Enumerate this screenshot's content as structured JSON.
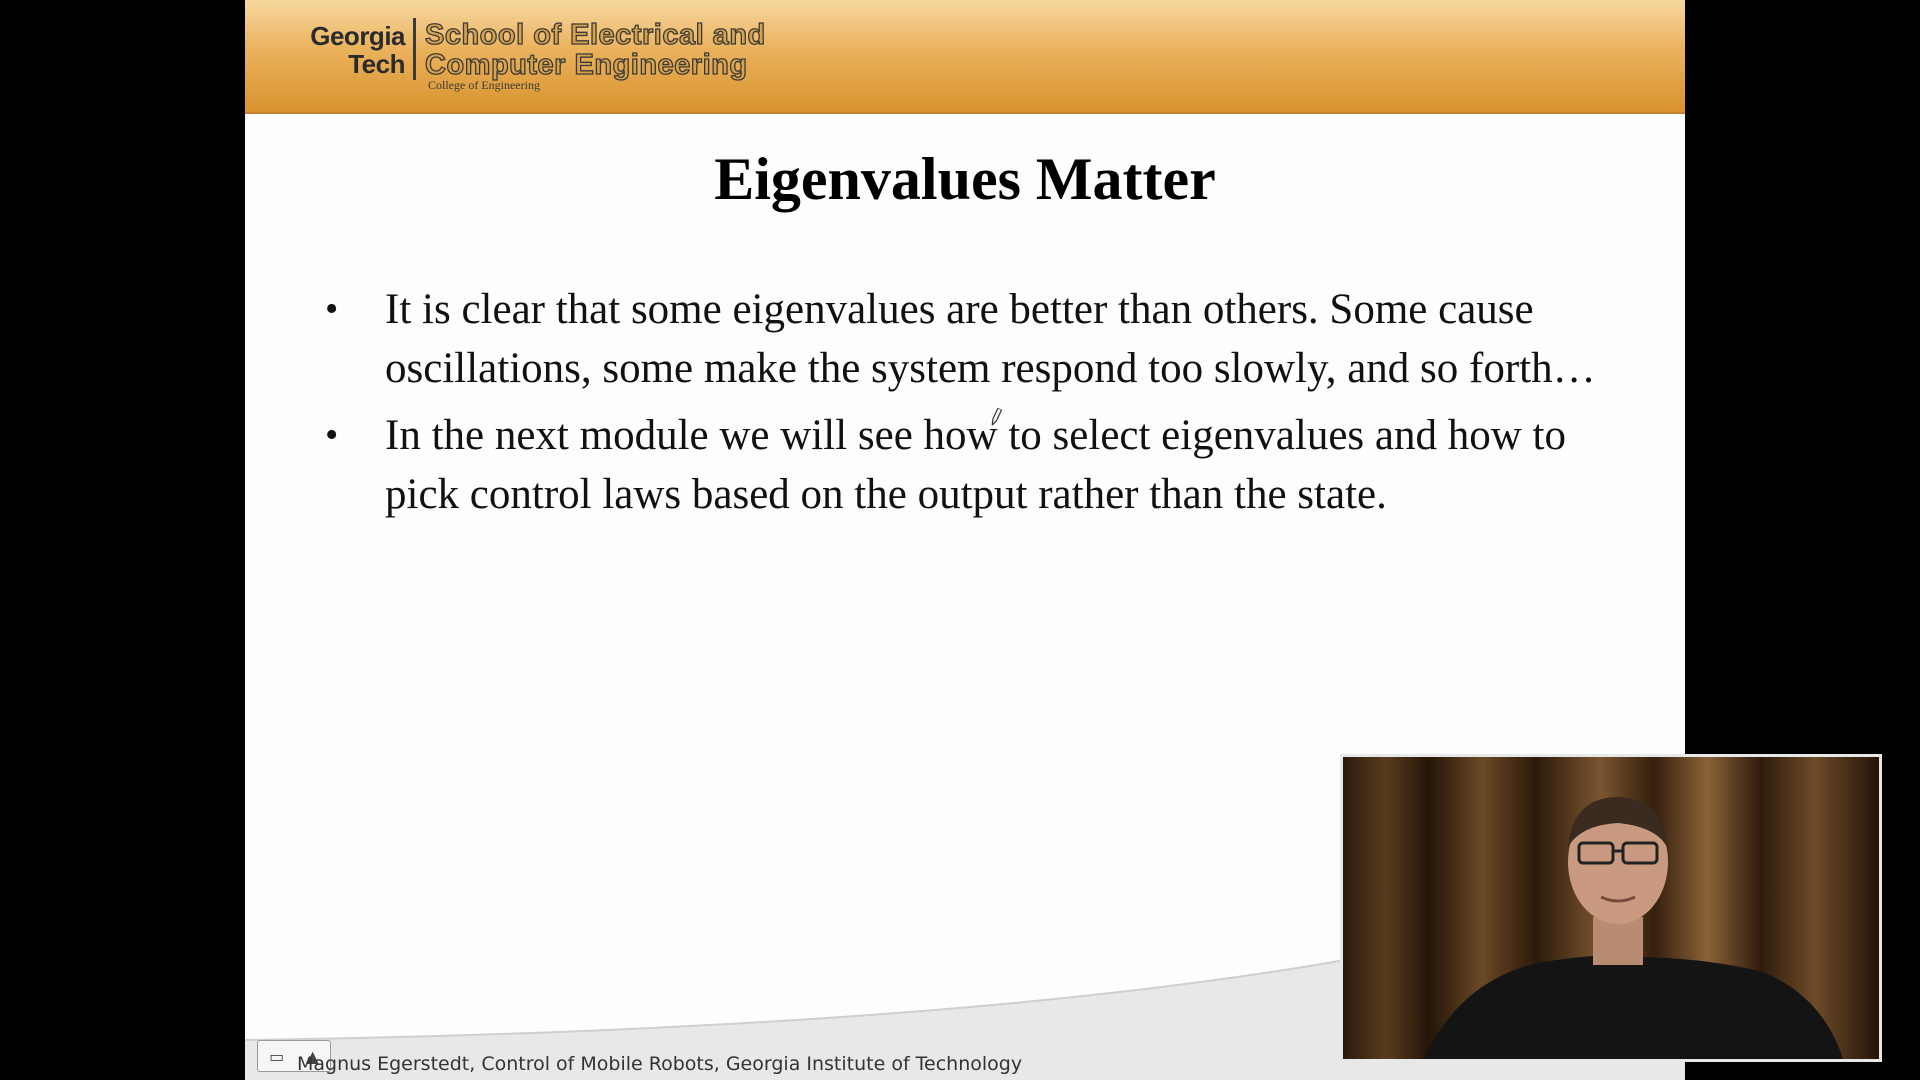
{
  "header": {
    "logo_line1": "Georgia",
    "logo_line2": "Tech",
    "school_line1": "School of Electrical and",
    "school_line2": "Computer Engineering",
    "college": "College of Engineering"
  },
  "slide": {
    "title": "Eigenvalues Matter",
    "bullets": [
      {
        "text": "It is clear that some eigenvalues are better than others. Some cause oscillations, some make the system respond too slowly, and so forth…"
      },
      {
        "text": "In the next module we will see how to select eigenvalues and how to pick control laws based on the output rather than the state."
      }
    ],
    "bullet_glyph": "•",
    "footer": "Magnus Egerstedt, Control of Mobile Robots, Georgia Institute of Technology"
  },
  "colors": {
    "header_top": "#f7d8a0",
    "header_bottom": "#d9932e",
    "slide_bg": "#fdfdfd",
    "page_bg": "#000000"
  },
  "icons": {
    "pen_cursor": "pen-cursor-icon",
    "slide_nav": "slide-nav-icon",
    "menu_up": "triangle-up-icon"
  },
  "controls": {
    "nav_glyph": "▭",
    "up_glyph": "▲"
  }
}
